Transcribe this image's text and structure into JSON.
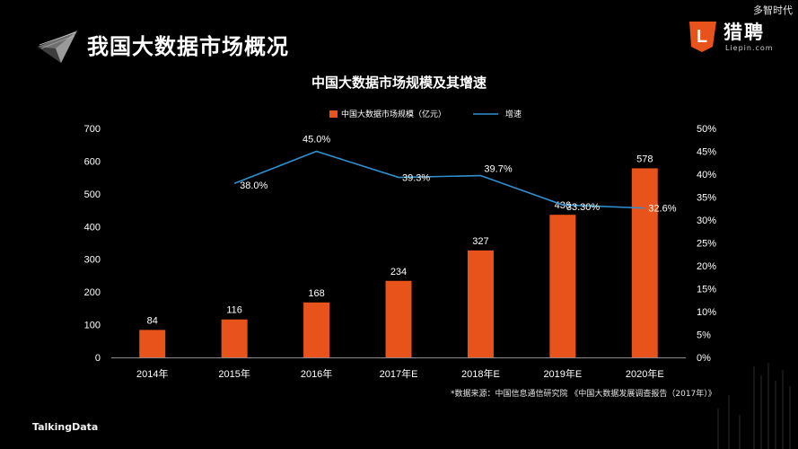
{
  "watermark": "多智时代",
  "header": {
    "title": "我国大数据市场概况"
  },
  "brand": {
    "name": "猎聘",
    "url": "Liepin.com",
    "badge_letter": "L"
  },
  "footer": {
    "brand": "TalkingData"
  },
  "source_note": "*数据来源：中国信息通信研究院 《中国大数据发展调查报告（2017年）》",
  "colors": {
    "background": "#000000",
    "bar": "#e8521b",
    "line": "#2f8fd0",
    "text": "#ffffff",
    "brand_badge": "#e8521b"
  },
  "chart_data": {
    "type": "bar",
    "title": "中国大数据市场规模及其增速",
    "categories": [
      "2014年",
      "2015年",
      "2016年",
      "2017年E",
      "2018年E",
      "2019年E",
      "2020年E"
    ],
    "series": [
      {
        "name": "中国大数据市场规模（亿元）",
        "type": "bar",
        "axis": "left",
        "values": [
          84,
          116,
          168,
          234,
          327,
          436,
          578
        ],
        "labels": [
          "84",
          "116",
          "168",
          "234",
          "327",
          "436",
          "578"
        ]
      },
      {
        "name": "增速",
        "type": "line",
        "axis": "right",
        "values": [
          null,
          38.0,
          45.0,
          39.3,
          39.7,
          33.3,
          32.6
        ],
        "labels": [
          null,
          "38.0%",
          "45.0%",
          "39.3%",
          "39.7%",
          "33.30%",
          "32.6%"
        ]
      }
    ],
    "y_left": {
      "min": 0,
      "max": 700,
      "ticks": [
        "0",
        "100",
        "200",
        "300",
        "400",
        "500",
        "600",
        "700"
      ]
    },
    "y_right": {
      "min": 0,
      "max": 50,
      "ticks": [
        "0%",
        "5%",
        "10%",
        "15%",
        "20%",
        "25%",
        "30%",
        "35%",
        "40%",
        "45%",
        "50%"
      ]
    },
    "legend_position": "top",
    "grid": false
  }
}
